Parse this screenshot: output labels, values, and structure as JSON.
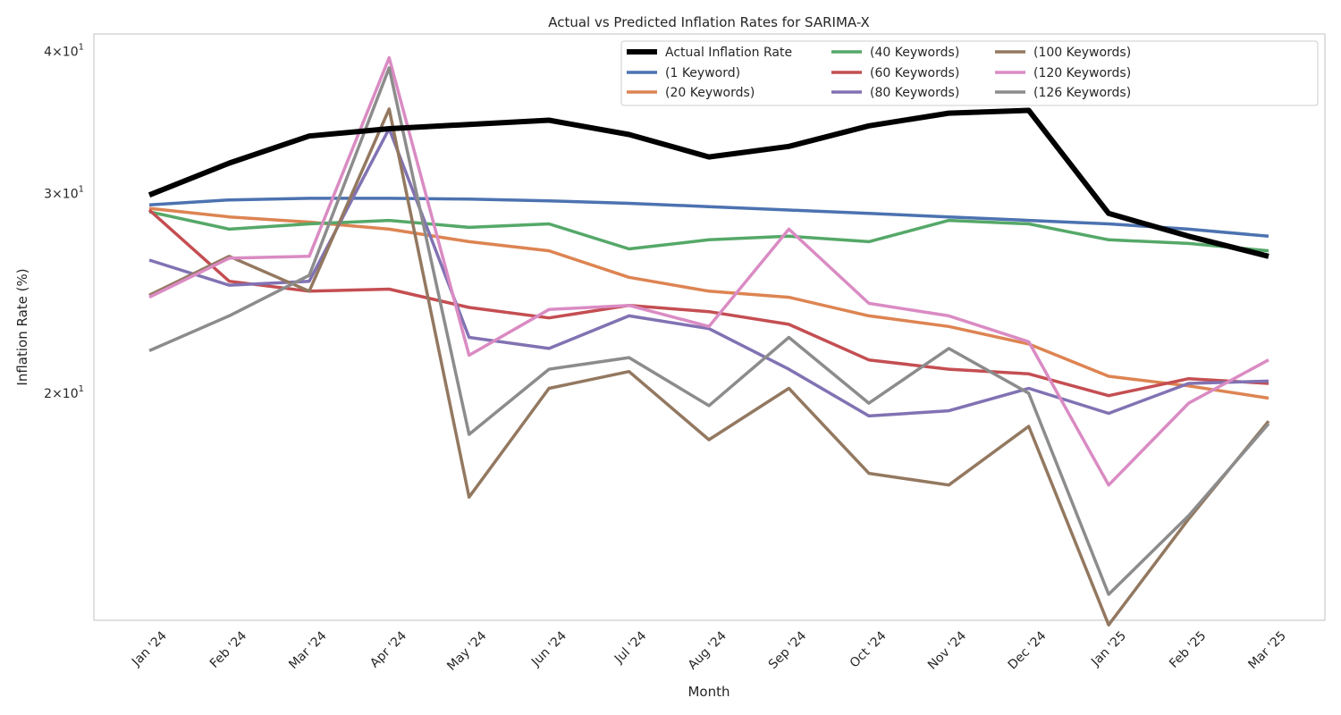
{
  "chart_data": {
    "type": "line",
    "title": "Actual vs Predicted Inflation Rates for SARIMA-X",
    "xlabel": "Month",
    "ylabel": "Inflation Rate (%)",
    "yscale": "log",
    "ylim": [
      13.3,
      41.3
    ],
    "yticks": [
      {
        "value": 20,
        "base": "2",
        "exp": "1"
      },
      {
        "value": 30,
        "base": "3",
        "exp": "1"
      },
      {
        "value": 40,
        "base": "4",
        "exp": "1"
      }
    ],
    "tick_times": "×10",
    "grid": false,
    "legend_position": "upper-right",
    "categories": [
      "Jan '24",
      "Feb '24",
      "Mar '24",
      "Apr '24",
      "May '24",
      "Jun '24",
      "Jul '24",
      "Aug '24",
      "Sep '24",
      "Oct '24",
      "Nov '24",
      "Dec '24",
      "Jan '25",
      "Feb '25",
      "Mar '25"
    ],
    "series": [
      {
        "name": "Actual Inflation Rate",
        "color": "#000000",
        "width": 6,
        "values": [
          29.9,
          31.9,
          33.7,
          34.2,
          34.5,
          34.8,
          33.8,
          32.3,
          33.0,
          34.4,
          35.3,
          35.5,
          28.8,
          27.5,
          26.4
        ]
      },
      {
        "name": "(1 Keyword)",
        "color": "#4c72b0",
        "width": 3.5,
        "values": [
          29.3,
          29.6,
          29.7,
          29.7,
          29.65,
          29.55,
          29.4,
          29.2,
          29.0,
          28.8,
          28.6,
          28.4,
          28.2,
          27.9,
          27.5
        ]
      },
      {
        "name": "(20 Keywords)",
        "color": "#dd8452",
        "width": 3.5,
        "values": [
          29.1,
          28.6,
          28.3,
          27.9,
          27.2,
          26.7,
          25.3,
          24.6,
          24.3,
          23.4,
          22.9,
          22.1,
          20.7,
          20.3,
          19.8
        ]
      },
      {
        "name": "(40 Keywords)",
        "color": "#55a868",
        "width": 3.5,
        "values": [
          28.9,
          27.9,
          28.2,
          28.4,
          28.0,
          28.2,
          26.8,
          27.3,
          27.5,
          27.2,
          28.4,
          28.2,
          27.3,
          27.1,
          26.7
        ]
      },
      {
        "name": "(60 Keywords)",
        "color": "#c44e52",
        "width": 3.5,
        "values": [
          29.0,
          25.1,
          24.6,
          24.7,
          23.8,
          23.3,
          23.9,
          23.6,
          23.0,
          21.4,
          21.0,
          20.8,
          19.9,
          20.6,
          20.4
        ]
      },
      {
        "name": "(80 Keywords)",
        "color": "#8172b3",
        "width": 3.5,
        "values": [
          26.2,
          24.9,
          25.1,
          34.2,
          22.4,
          21.9,
          23.4,
          22.8,
          21.0,
          19.1,
          19.3,
          20.2,
          19.2,
          20.4,
          20.5
        ]
      },
      {
        "name": "(100 Keywords)",
        "color": "#937860",
        "width": 3.5,
        "values": [
          24.4,
          26.4,
          24.6,
          35.6,
          16.2,
          20.2,
          20.9,
          18.2,
          20.2,
          17.0,
          16.6,
          18.7,
          12.5,
          15.5,
          18.9
        ]
      },
      {
        "name": "(120 Keywords)",
        "color": "#da8bc3",
        "width": 3.5,
        "values": [
          24.3,
          26.3,
          26.4,
          39.5,
          21.6,
          23.7,
          23.9,
          22.9,
          27.9,
          24.0,
          23.4,
          22.2,
          16.6,
          19.6,
          21.4
        ]
      },
      {
        "name": "(126 Keywords)",
        "color": "#8c8c8c",
        "width": 3.5,
        "values": [
          21.8,
          23.4,
          25.4,
          38.7,
          18.4,
          21.0,
          21.5,
          19.5,
          22.4,
          19.6,
          21.9,
          20.0,
          13.3,
          15.6,
          18.8
        ]
      }
    ]
  }
}
